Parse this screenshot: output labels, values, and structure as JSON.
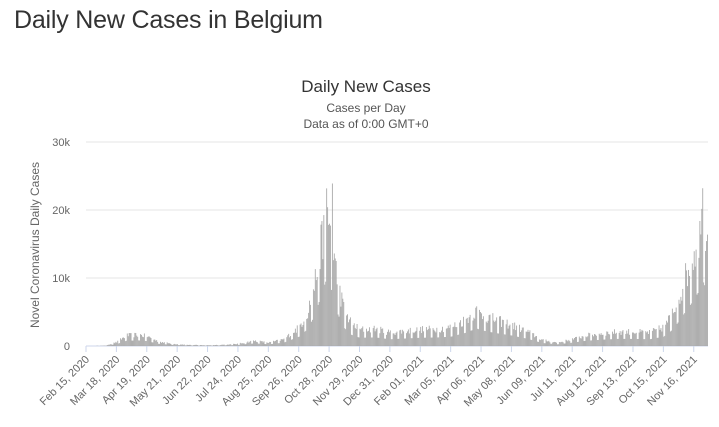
{
  "page": {
    "heading": "Daily New Cases in Belgium"
  },
  "chart_data": {
    "type": "bar",
    "title": "Daily New Cases",
    "subtitle_line1": "Cases per Day",
    "subtitle_line2": "Data as of 0:00 GMT+0",
    "ylabel": "Novel Coronavirus Daily Cases",
    "xlabel": "",
    "ylim": [
      0,
      30000
    ],
    "yticks": [
      {
        "value": 0,
        "label": "0"
      },
      {
        "value": 10000,
        "label": "10k"
      },
      {
        "value": 20000,
        "label": "20k"
      },
      {
        "value": 30000,
        "label": "30k"
      }
    ],
    "start_date": "2020-02-15",
    "xticks": [
      {
        "date": "2020-02-15",
        "label": "Feb 15, 2020"
      },
      {
        "date": "2020-03-18",
        "label": "Mar 18, 2020"
      },
      {
        "date": "2020-04-19",
        "label": "Apr 19, 2020"
      },
      {
        "date": "2020-05-21",
        "label": "May 21, 2020"
      },
      {
        "date": "2020-06-22",
        "label": "Jun 22, 2020"
      },
      {
        "date": "2020-07-24",
        "label": "Jul 24, 2020"
      },
      {
        "date": "2020-08-25",
        "label": "Aug 25, 2020"
      },
      {
        "date": "2020-09-26",
        "label": "Sep 26, 2020"
      },
      {
        "date": "2020-10-28",
        "label": "Oct 28, 2020"
      },
      {
        "date": "2020-11-29",
        "label": "Nov 29, 2020"
      },
      {
        "date": "2020-12-31",
        "label": "Dec 31, 2020"
      },
      {
        "date": "2021-02-01",
        "label": "Feb 01, 2021"
      },
      {
        "date": "2021-03-05",
        "label": "Mar 05, 2021"
      },
      {
        "date": "2021-04-06",
        "label": "Apr 06, 2021"
      },
      {
        "date": "2021-05-08",
        "label": "May 08, 2021"
      },
      {
        "date": "2021-06-09",
        "label": "Jun 09, 2021"
      },
      {
        "date": "2021-07-11",
        "label": "Jul 11, 2021"
      },
      {
        "date": "2021-08-12",
        "label": "Aug 12, 2021"
      },
      {
        "date": "2021-09-13",
        "label": "Sep 13, 2021"
      },
      {
        "date": "2021-10-15",
        "label": "Oct 15, 2021"
      },
      {
        "date": "2021-11-16",
        "label": "Nov 16, 2021"
      }
    ],
    "trend_points": [
      {
        "date": "2020-02-15",
        "value": 0
      },
      {
        "date": "2020-03-05",
        "value": 40
      },
      {
        "date": "2020-03-18",
        "value": 500
      },
      {
        "date": "2020-03-28",
        "value": 1400
      },
      {
        "date": "2020-04-10",
        "value": 1500
      },
      {
        "date": "2020-04-19",
        "value": 1300
      },
      {
        "date": "2020-05-01",
        "value": 600
      },
      {
        "date": "2020-05-15",
        "value": 300
      },
      {
        "date": "2020-06-01",
        "value": 150
      },
      {
        "date": "2020-06-22",
        "value": 100
      },
      {
        "date": "2020-07-15",
        "value": 200
      },
      {
        "date": "2020-07-24",
        "value": 300
      },
      {
        "date": "2020-08-10",
        "value": 700
      },
      {
        "date": "2020-08-25",
        "value": 450
      },
      {
        "date": "2020-09-10",
        "value": 900
      },
      {
        "date": "2020-09-26",
        "value": 2500
      },
      {
        "date": "2020-10-05",
        "value": 4500
      },
      {
        "date": "2020-10-12",
        "value": 8000
      },
      {
        "date": "2020-10-20",
        "value": 14000
      },
      {
        "date": "2020-10-25",
        "value": 18000
      },
      {
        "date": "2020-10-30",
        "value": 15000
      },
      {
        "date": "2020-11-05",
        "value": 9000
      },
      {
        "date": "2020-11-12",
        "value": 5000
      },
      {
        "date": "2020-11-20",
        "value": 3000
      },
      {
        "date": "2020-11-29",
        "value": 2200
      },
      {
        "date": "2020-12-15",
        "value": 2300
      },
      {
        "date": "2020-12-31",
        "value": 1800
      },
      {
        "date": "2021-01-15",
        "value": 2000
      },
      {
        "date": "2021-02-01",
        "value": 2200
      },
      {
        "date": "2021-02-20",
        "value": 2300
      },
      {
        "date": "2021-03-05",
        "value": 2500
      },
      {
        "date": "2021-03-20",
        "value": 3500
      },
      {
        "date": "2021-04-01",
        "value": 4700
      },
      {
        "date": "2021-04-06",
        "value": 4200
      },
      {
        "date": "2021-04-20",
        "value": 3500
      },
      {
        "date": "2021-05-08",
        "value": 2800
      },
      {
        "date": "2021-05-25",
        "value": 1900
      },
      {
        "date": "2021-06-09",
        "value": 800
      },
      {
        "date": "2021-06-25",
        "value": 450
      },
      {
        "date": "2021-07-11",
        "value": 900
      },
      {
        "date": "2021-07-25",
        "value": 1400
      },
      {
        "date": "2021-08-12",
        "value": 1700
      },
      {
        "date": "2021-08-28",
        "value": 1900
      },
      {
        "date": "2021-09-13",
        "value": 1900
      },
      {
        "date": "2021-09-30",
        "value": 1800
      },
      {
        "date": "2021-10-15",
        "value": 2500
      },
      {
        "date": "2021-10-25",
        "value": 4500
      },
      {
        "date": "2021-11-01",
        "value": 7000
      },
      {
        "date": "2021-11-08",
        "value": 9500
      },
      {
        "date": "2021-11-16",
        "value": 12500
      },
      {
        "date": "2021-11-22",
        "value": 15000
      },
      {
        "date": "2021-11-26",
        "value": 17000
      },
      {
        "date": "2021-11-30",
        "value": 14000
      }
    ],
    "peaks": [
      {
        "date": "2020-10-31",
        "value": 23900
      },
      {
        "date": "2021-11-25",
        "value": 23200
      }
    ],
    "end_date": "2021-11-30",
    "bar_color": "#a6a6a6",
    "grid": true
  }
}
